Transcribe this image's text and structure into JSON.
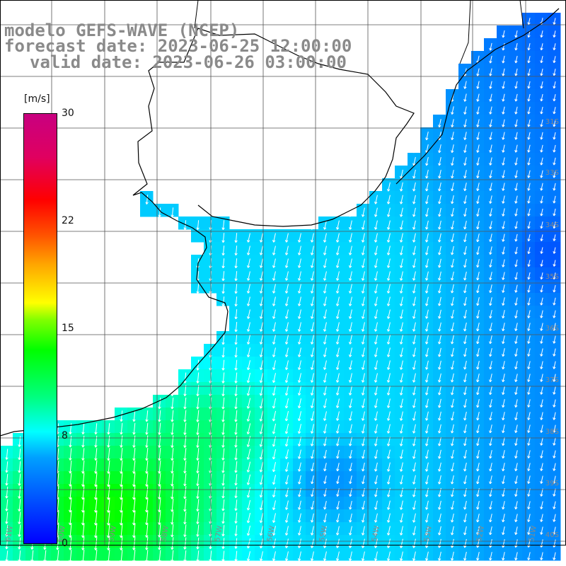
{
  "header": {
    "title": "modelo GEFS-WAVE (NCEP)",
    "forecast_line": "forecast date: 2023-06-25 12:00:00",
    "valid_line": "valid date: 2023-06-26 03:00:00"
  },
  "colorbar": {
    "unit": "[m/s]",
    "ticks": [
      "30",
      "22",
      "15",
      "8",
      "0"
    ],
    "colors": [
      "#0000ff",
      "#00a0ff",
      "#00ffff",
      "#00ff00",
      "#ffff00",
      "#ff0000",
      "#c80080"
    ]
  },
  "lat_labels": [
    "31S",
    "33S",
    "34S",
    "35S",
    "36S",
    "37S",
    "38S",
    "39S",
    "40S"
  ],
  "lon_labels": [
    "61W",
    "60W",
    "59W",
    "58W",
    "57W",
    "56W",
    "55W",
    "54W",
    "53W",
    "52W",
    "51W"
  ],
  "colors": {
    "land": "#ffffff",
    "coastline": "#000000",
    "grid": "#555555",
    "arrow": "#ffffff",
    "label": "#888888"
  }
}
